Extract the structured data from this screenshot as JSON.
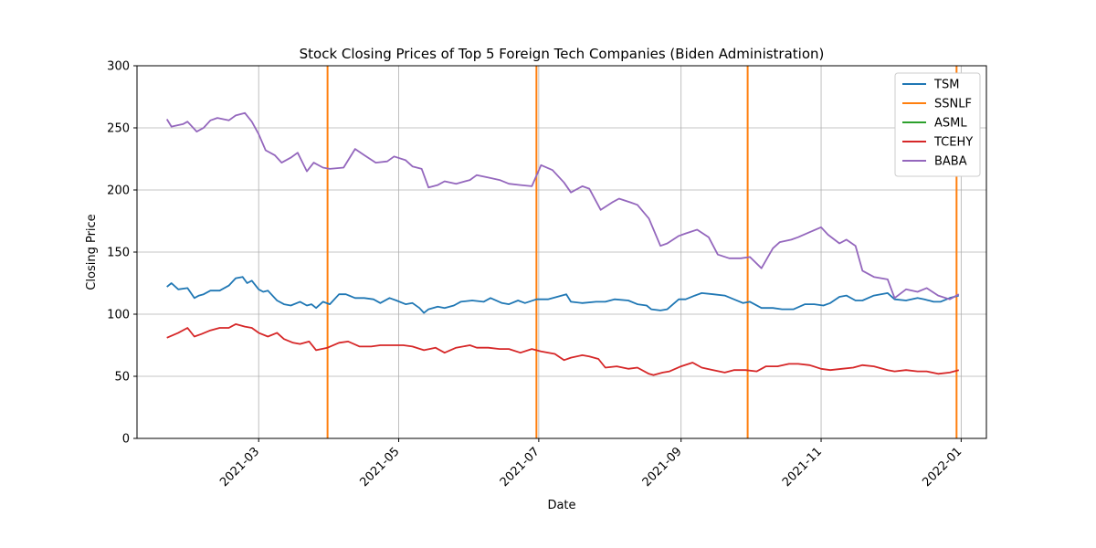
{
  "chart_data": {
    "type": "line",
    "title": "Stock Closing Prices of Top 5 Foreign Tech Companies (Biden Administration)",
    "xlabel": "Date",
    "ylabel": "Closing Price",
    "xlim": [
      "2021-01-07",
      "2022-01-12"
    ],
    "ylim": [
      0,
      300
    ],
    "yticks": [
      0,
      50,
      100,
      150,
      200,
      250,
      300
    ],
    "xticks": [
      "2021-03-01",
      "2021-05-01",
      "2021-07-01",
      "2021-09-01",
      "2021-11-01",
      "2022-01-01"
    ],
    "xtick_labels": [
      "2021-03",
      "2021-05",
      "2021-07",
      "2021-09",
      "2021-11",
      "2022-01"
    ],
    "grid": true,
    "legend_position": "top-right",
    "series": [
      {
        "name": "TSM",
        "color": "#1f77b4",
        "x": [
          "2021-01-20",
          "2021-01-22",
          "2021-01-25",
          "2021-01-29",
          "2021-02-01",
          "2021-02-03",
          "2021-02-05",
          "2021-02-08",
          "2021-02-12",
          "2021-02-16",
          "2021-02-19",
          "2021-02-22",
          "2021-02-24",
          "2021-02-26",
          "2021-03-01",
          "2021-03-03",
          "2021-03-05",
          "2021-03-09",
          "2021-03-12",
          "2021-03-15",
          "2021-03-19",
          "2021-03-22",
          "2021-03-24",
          "2021-03-26",
          "2021-03-29",
          "2021-04-01",
          "2021-04-05",
          "2021-04-08",
          "2021-04-12",
          "2021-04-16",
          "2021-04-20",
          "2021-04-23",
          "2021-04-27",
          "2021-04-30",
          "2021-05-04",
          "2021-05-07",
          "2021-05-10",
          "2021-05-12",
          "2021-05-14",
          "2021-05-18",
          "2021-05-21",
          "2021-05-25",
          "2021-05-28",
          "2021-06-02",
          "2021-06-07",
          "2021-06-10",
          "2021-06-15",
          "2021-06-18",
          "2021-06-22",
          "2021-06-25",
          "2021-06-30",
          "2021-07-05",
          "2021-07-09",
          "2021-07-13",
          "2021-07-15",
          "2021-07-20",
          "2021-07-26",
          "2021-07-30",
          "2021-08-03",
          "2021-08-09",
          "2021-08-13",
          "2021-08-17",
          "2021-08-19",
          "2021-08-23",
          "2021-08-26",
          "2021-08-31",
          "2021-09-03",
          "2021-09-07",
          "2021-09-10",
          "2021-09-15",
          "2021-09-20",
          "2021-09-24",
          "2021-09-28",
          "2021-10-01",
          "2021-10-06",
          "2021-10-11",
          "2021-10-15",
          "2021-10-20",
          "2021-10-25",
          "2021-10-29",
          "2021-11-02",
          "2021-11-05",
          "2021-11-09",
          "2021-11-12",
          "2021-11-16",
          "2021-11-19",
          "2021-11-24",
          "2021-11-30",
          "2021-12-03",
          "2021-12-08",
          "2021-12-13",
          "2021-12-16",
          "2021-12-20",
          "2021-12-23",
          "2021-12-27",
          "2021-12-31"
        ],
        "y": [
          122,
          125,
          120,
          121,
          113,
          115,
          116,
          119,
          119,
          123,
          129,
          130,
          125,
          127,
          120,
          118,
          119,
          111,
          108,
          107,
          110,
          107,
          108,
          105,
          110,
          108,
          116,
          116,
          113,
          113,
          112,
          109,
          113,
          111,
          108,
          109,
          105,
          101,
          104,
          106,
          105,
          107,
          110,
          111,
          110,
          113,
          109,
          108,
          111,
          109,
          112,
          112,
          114,
          116,
          110,
          109,
          110,
          110,
          112,
          111,
          108,
          107,
          104,
          103,
          104,
          112,
          112,
          115,
          117,
          116,
          115,
          112,
          109,
          110,
          105,
          105,
          104,
          104,
          108,
          108,
          107,
          109,
          114,
          115,
          111,
          111,
          115,
          117,
          112,
          111,
          113,
          112,
          110,
          110,
          113,
          115
        ]
      },
      {
        "name": "SSNLF",
        "color": "#ff7f0e",
        "x": [
          "2021-03-31",
          "2021-03-31",
          "2021-06-30",
          "2021-06-30",
          "2021-09-30",
          "2021-09-30",
          "2021-12-30",
          "2021-12-30"
        ],
        "y": [
          0,
          300,
          null,
          null,
          0,
          300,
          null,
          null
        ],
        "vlines": [
          "2021-03-31",
          "2021-06-30",
          "2021-09-30",
          "2021-12-30"
        ]
      },
      {
        "name": "ASML",
        "color": "#2ca02c",
        "x": [],
        "y": []
      },
      {
        "name": "TCEHY",
        "color": "#d62728",
        "x": [
          "2021-01-20",
          "2021-01-25",
          "2021-01-29",
          "2021-02-01",
          "2021-02-04",
          "2021-02-08",
          "2021-02-12",
          "2021-02-16",
          "2021-02-19",
          "2021-02-23",
          "2021-02-26",
          "2021-03-01",
          "2021-03-05",
          "2021-03-09",
          "2021-03-12",
          "2021-03-16",
          "2021-03-19",
          "2021-03-23",
          "2021-03-26",
          "2021-03-31",
          "2021-04-05",
          "2021-04-09",
          "2021-04-14",
          "2021-04-19",
          "2021-04-23",
          "2021-04-28",
          "2021-05-03",
          "2021-05-07",
          "2021-05-12",
          "2021-05-17",
          "2021-05-21",
          "2021-05-26",
          "2021-06-01",
          "2021-06-04",
          "2021-06-09",
          "2021-06-14",
          "2021-06-18",
          "2021-06-23",
          "2021-06-28",
          "2021-07-02",
          "2021-07-08",
          "2021-07-12",
          "2021-07-15",
          "2021-07-20",
          "2021-07-23",
          "2021-07-27",
          "2021-07-30",
          "2021-08-04",
          "2021-08-09",
          "2021-08-13",
          "2021-08-18",
          "2021-08-20",
          "2021-08-24",
          "2021-08-27",
          "2021-09-01",
          "2021-09-06",
          "2021-09-10",
          "2021-09-15",
          "2021-09-20",
          "2021-09-24",
          "2021-09-29",
          "2021-10-04",
          "2021-10-08",
          "2021-10-13",
          "2021-10-18",
          "2021-10-22",
          "2021-10-27",
          "2021-11-01",
          "2021-11-05",
          "2021-11-10",
          "2021-11-15",
          "2021-11-19",
          "2021-11-24",
          "2021-11-30",
          "2021-12-03",
          "2021-12-08",
          "2021-12-13",
          "2021-12-17",
          "2021-12-22",
          "2021-12-27",
          "2021-12-31"
        ],
        "y": [
          81,
          85,
          89,
          82,
          84,
          87,
          89,
          89,
          92,
          90,
          89,
          85,
          82,
          85,
          80,
          77,
          76,
          78,
          71,
          73,
          77,
          78,
          74,
          74,
          75,
          75,
          75,
          74,
          71,
          73,
          69,
          73,
          75,
          73,
          73,
          72,
          72,
          69,
          72,
          70,
          68,
          63,
          65,
          67,
          66,
          64,
          57,
          58,
          56,
          57,
          52,
          51,
          53,
          54,
          58,
          61,
          57,
          55,
          53,
          55,
          55,
          54,
          58,
          58,
          60,
          60,
          59,
          56,
          55,
          56,
          57,
          59,
          58,
          55,
          54,
          55,
          54,
          54,
          52,
          53,
          55
        ]
      },
      {
        "name": "BABA",
        "color": "#9467bd",
        "x": [
          "2021-01-20",
          "2021-01-22",
          "2021-01-27",
          "2021-01-29",
          "2021-02-02",
          "2021-02-05",
          "2021-02-08",
          "2021-02-11",
          "2021-02-16",
          "2021-02-19",
          "2021-02-23",
          "2021-02-26",
          "2021-03-01",
          "2021-03-04",
          "2021-03-08",
          "2021-03-11",
          "2021-03-15",
          "2021-03-18",
          "2021-03-22",
          "2021-03-25",
          "2021-03-29",
          "2021-04-01",
          "2021-04-07",
          "2021-04-12",
          "2021-04-16",
          "2021-04-21",
          "2021-04-26",
          "2021-04-29",
          "2021-05-04",
          "2021-05-07",
          "2021-05-11",
          "2021-05-14",
          "2021-05-18",
          "2021-05-21",
          "2021-05-26",
          "2021-06-01",
          "2021-06-04",
          "2021-06-09",
          "2021-06-14",
          "2021-06-18",
          "2021-06-23",
          "2021-06-28",
          "2021-07-02",
          "2021-07-07",
          "2021-07-12",
          "2021-07-15",
          "2021-07-20",
          "2021-07-23",
          "2021-07-28",
          "2021-08-02",
          "2021-08-05",
          "2021-08-10",
          "2021-08-13",
          "2021-08-18",
          "2021-08-23",
          "2021-08-26",
          "2021-08-31",
          "2021-09-03",
          "2021-09-08",
          "2021-09-13",
          "2021-09-17",
          "2021-09-22",
          "2021-09-27",
          "2021-10-01",
          "2021-10-06",
          "2021-10-11",
          "2021-10-14",
          "2021-10-19",
          "2021-10-22",
          "2021-10-27",
          "2021-11-01",
          "2021-11-04",
          "2021-11-09",
          "2021-11-12",
          "2021-11-16",
          "2021-11-19",
          "2021-11-24",
          "2021-11-30",
          "2021-12-03",
          "2021-12-08",
          "2021-12-13",
          "2021-12-17",
          "2021-12-22",
          "2021-12-27",
          "2021-12-31"
        ],
        "y": [
          257,
          251,
          253,
          255,
          247,
          250,
          256,
          258,
          256,
          260,
          262,
          255,
          245,
          232,
          228,
          222,
          226,
          230,
          215,
          222,
          218,
          217,
          218,
          233,
          228,
          222,
          223,
          227,
          224,
          219,
          217,
          202,
          204,
          207,
          205,
          208,
          212,
          210,
          208,
          205,
          204,
          203,
          220,
          216,
          206,
          198,
          203,
          201,
          184,
          190,
          193,
          190,
          188,
          177,
          155,
          157,
          163,
          165,
          168,
          162,
          148,
          145,
          145,
          146,
          137,
          153,
          158,
          160,
          162,
          166,
          170,
          164,
          157,
          160,
          155,
          135,
          130,
          128,
          113,
          120,
          118,
          121,
          115,
          112,
          116
        ]
      }
    ]
  }
}
